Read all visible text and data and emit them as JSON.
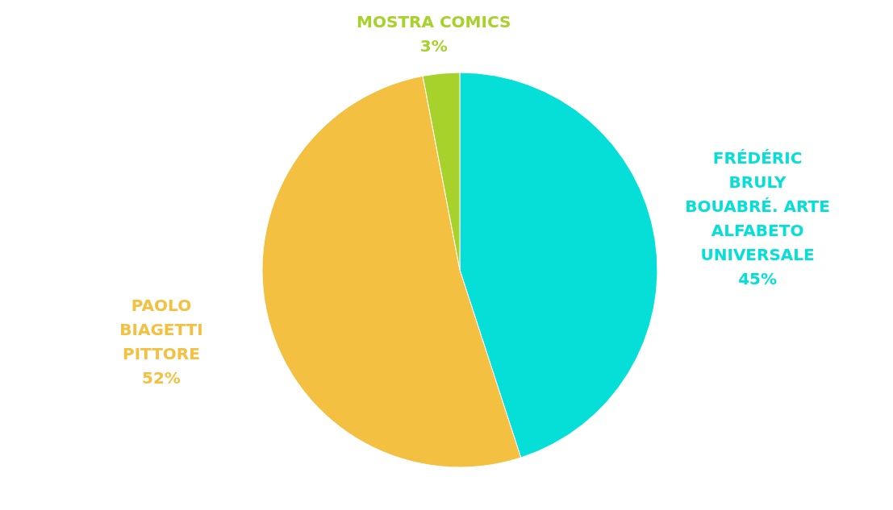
{
  "chart_data": {
    "type": "pie",
    "categories": [
      "FRÉDÉRIC BRULY BOUABRÉ. ARTE ALFABETO UNIVERSALE",
      "PAOLO BIAGETTI PITTORE",
      "MOSTRA COMICS"
    ],
    "values": [
      45,
      52,
      3
    ],
    "value_labels": [
      "45%",
      "52%",
      "3%"
    ],
    "colors": [
      "#05dfd7",
      "#f4c042",
      "#a7d12b"
    ]
  }
}
